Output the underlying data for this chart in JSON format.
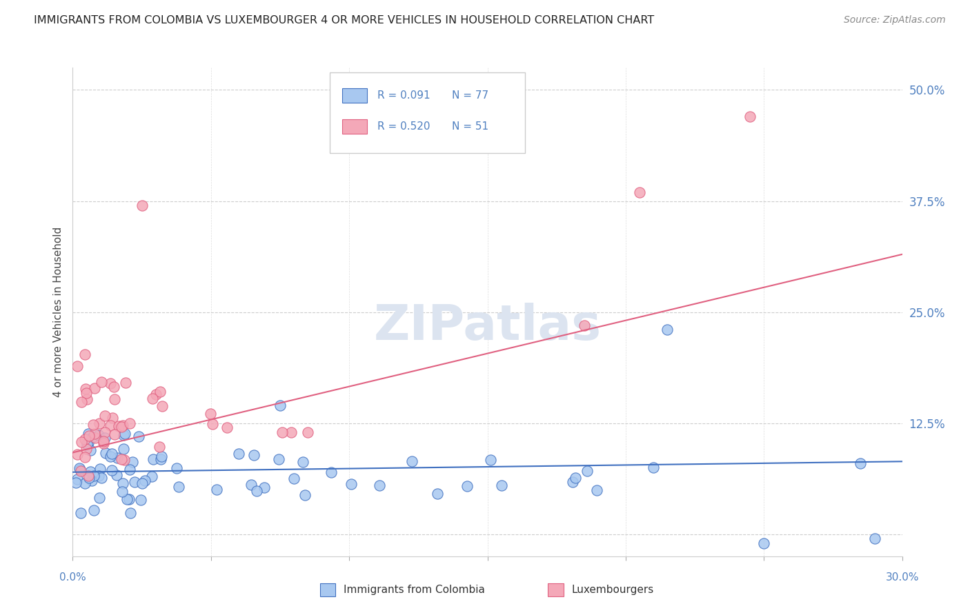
{
  "title": "IMMIGRANTS FROM COLOMBIA VS LUXEMBOURGER 4 OR MORE VEHICLES IN HOUSEHOLD CORRELATION CHART",
  "source": "Source: ZipAtlas.com",
  "ylabel": "4 or more Vehicles in Household",
  "xmin": 0.0,
  "xmax": 0.3,
  "ymin": -0.025,
  "ymax": 0.525,
  "yticks": [
    0.0,
    0.125,
    0.25,
    0.375,
    0.5
  ],
  "ytick_labels": [
    "",
    "12.5%",
    "25.0%",
    "37.5%",
    "50.0%"
  ],
  "watermark": "ZIPatlas",
  "color_blue": "#A8C8F0",
  "color_pink": "#F4A8B8",
  "color_line_blue": "#4070C0",
  "color_line_pink": "#E06080",
  "color_axis_label": "#5080C0",
  "color_title": "#222222",
  "color_watermark": "#DCE4F0",
  "background_color": "#FFFFFF",
  "blue_trend_x": [
    0.0,
    0.3
  ],
  "blue_trend_y": [
    0.07,
    0.082
  ],
  "pink_trend_x": [
    0.0,
    0.3
  ],
  "pink_trend_y": [
    0.092,
    0.315
  ]
}
